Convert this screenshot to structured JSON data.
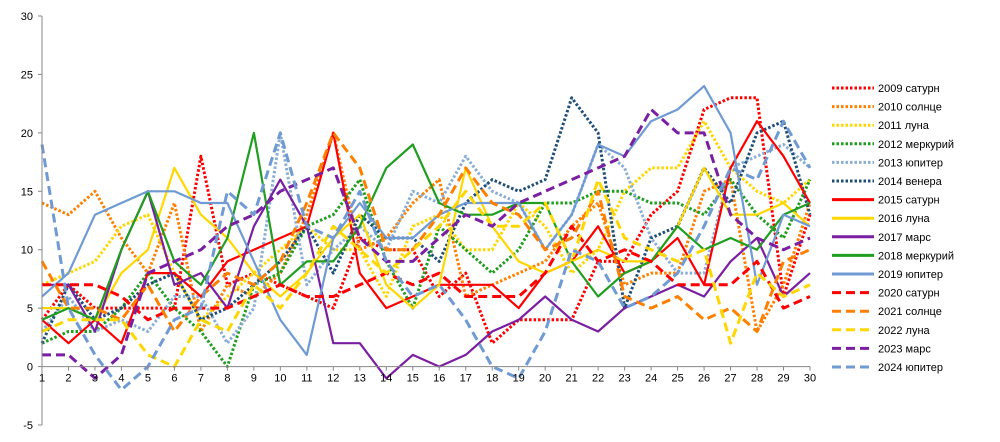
{
  "chart_data": {
    "type": "line",
    "title": "",
    "xlabel": "",
    "ylabel": "",
    "x": [
      1,
      2,
      3,
      4,
      5,
      6,
      7,
      8,
      9,
      10,
      11,
      12,
      13,
      14,
      15,
      16,
      17,
      18,
      19,
      20,
      21,
      22,
      23,
      24,
      25,
      26,
      27,
      28,
      29,
      30
    ],
    "xlim": [
      1,
      30
    ],
    "ylim": [
      -5,
      30
    ],
    "yticks": [
      -5,
      0,
      5,
      10,
      15,
      20,
      25,
      30
    ],
    "grid": false,
    "legend_position": "right",
    "series": [
      {
        "name": "2009 сатурн",
        "color": "#ff0000",
        "dash": "dotted",
        "values": [
          4,
          7,
          5,
          5,
          5,
          5,
          18,
          7,
          8,
          7,
          6,
          5,
          11,
          10,
          10,
          6,
          8,
          2,
          4,
          4,
          4,
          9,
          9,
          13,
          15,
          22,
          23,
          23,
          6,
          13
        ]
      },
      {
        "name": "2010 солнце",
        "color": "#ff8000",
        "dash": "dotted",
        "values": [
          14,
          13,
          15,
          11,
          8,
          14,
          3,
          7,
          6,
          8,
          13,
          20,
          10,
          11,
          14,
          16,
          6,
          7,
          8,
          9,
          12,
          14,
          7,
          8,
          8,
          15,
          16,
          3,
          7,
          14
        ]
      },
      {
        "name": "2011 луна",
        "color": "#ffd700",
        "dash": "dotted",
        "values": [
          7,
          8,
          9,
          12,
          13,
          8,
          4,
          6,
          8,
          10,
          12,
          10,
          10,
          6,
          12,
          13,
          10,
          10,
          14,
          12,
          8,
          10,
          15,
          17,
          17,
          21,
          17,
          15,
          14,
          16
        ]
      },
      {
        "name": "2012 меркурий",
        "color": "#1f9e1f",
        "dash": "dotted",
        "values": [
          2,
          3,
          3,
          5,
          8,
          5,
          3,
          0,
          7,
          8,
          12,
          13,
          16,
          9,
          5,
          12,
          10,
          8,
          10,
          14,
          14,
          15,
          15,
          14,
          14,
          13,
          16,
          13,
          11,
          16
        ]
      },
      {
        "name": "2013 юпитер",
        "color": "#8aaed6",
        "dash": "dotted",
        "values": [
          3,
          6,
          3,
          4,
          3,
          6,
          6,
          2,
          5,
          20,
          7,
          10,
          12,
          10,
          15,
          14,
          18,
          15,
          14,
          10,
          13,
          19,
          17,
          11,
          8,
          8,
          17,
          18,
          19,
          17
        ]
      },
      {
        "name": "2014 венера",
        "color": "#1f4e79",
        "dash": "dotted",
        "values": [
          2,
          7,
          4,
          5,
          7,
          8,
          4,
          5,
          7,
          9,
          12,
          8,
          13,
          11,
          11,
          9,
          14,
          16,
          15,
          16,
          23,
          20,
          5,
          11,
          12,
          17,
          14,
          20,
          21,
          13
        ]
      },
      {
        "name": "2015 сатурн",
        "color": "#ff0000",
        "dash": "solid",
        "values": [
          4,
          2,
          4,
          2,
          8,
          8,
          6,
          9,
          10,
          11,
          12,
          20,
          8,
          5,
          6,
          7,
          7,
          7,
          5,
          8,
          9,
          12,
          8,
          9,
          11,
          7,
          17,
          21,
          18,
          14
        ]
      },
      {
        "name": "2016 луна",
        "color": "#ffd700",
        "dash": "solid",
        "values": [
          5,
          5,
          4,
          8,
          10,
          17,
          13,
          11,
          8,
          6,
          8,
          11,
          13,
          7,
          5,
          7,
          17,
          12,
          9,
          8,
          9,
          10,
          9,
          9,
          12,
          17,
          13,
          13,
          14,
          12
        ]
      },
      {
        "name": "2017 марс",
        "color": "#7a1fa2",
        "dash": "solid",
        "values": [
          7,
          7,
          3,
          10,
          15,
          7,
          8,
          5,
          12,
          16,
          12,
          2,
          2,
          -1,
          1,
          0,
          1,
          3,
          4,
          6,
          4,
          3,
          5,
          6,
          7,
          6,
          9,
          11,
          6,
          8
        ]
      },
      {
        "name": "2018 меркурий",
        "color": "#1f9e1f",
        "dash": "solid",
        "values": [
          4,
          5,
          4,
          10,
          15,
          9,
          7,
          11,
          20,
          7,
          9,
          9,
          12,
          17,
          19,
          14,
          13,
          13,
          14,
          14,
          9,
          6,
          8,
          9,
          12,
          10,
          11,
          10,
          13,
          14
        ]
      },
      {
        "name": "2019 юпитер",
        "color": "#6f9ad3",
        "dash": "solid",
        "values": [
          6,
          8,
          13,
          14,
          15,
          15,
          14,
          14,
          9,
          4,
          1,
          11,
          14,
          11,
          11,
          13,
          14,
          14,
          14,
          10,
          13,
          19,
          18,
          21,
          22,
          24,
          20,
          7,
          13,
          12
        ]
      },
      {
        "name": "2020 сатурн",
        "color": "#ff0000",
        "dash": "dashed",
        "values": [
          7,
          7,
          7,
          6,
          4,
          5,
          5,
          5,
          6,
          7,
          6,
          6,
          7,
          8,
          7,
          8,
          6,
          6,
          6,
          8,
          12,
          9,
          10,
          9,
          7,
          7,
          7,
          9,
          5,
          6
        ]
      },
      {
        "name": "2021 солнце",
        "color": "#ff8000",
        "dash": "dashed",
        "values": [
          9,
          5,
          5,
          4,
          7,
          3,
          6,
          8,
          7,
          9,
          14,
          20,
          17,
          10,
          10,
          13,
          17,
          14,
          13,
          10,
          11,
          15,
          6,
          5,
          6,
          4,
          5,
          3,
          9,
          10
        ]
      },
      {
        "name": "2022 луна",
        "color": "#ffd700",
        "dash": "dashed",
        "values": [
          3,
          4,
          4,
          4,
          1,
          0,
          4,
          3,
          7,
          5,
          8,
          12,
          10,
          8,
          10,
          12,
          15,
          12,
          12,
          14,
          9,
          16,
          11,
          10,
          9,
          10,
          2,
          8,
          6,
          7
        ]
      },
      {
        "name": "2023 марс",
        "color": "#7a1fa2",
        "dash": "dashed",
        "values": [
          1,
          1,
          -1,
          1,
          8,
          9,
          10,
          12,
          13,
          15,
          16,
          17,
          11,
          9,
          9,
          11,
          13,
          12,
          14,
          15,
          16,
          17,
          18,
          22,
          20,
          20,
          13,
          11,
          10,
          11
        ]
      },
      {
        "name": "2024 юпитер",
        "color": "#6f9ad3",
        "dash": "dashed",
        "values": [
          19,
          5,
          1,
          -2,
          0,
          4,
          5,
          15,
          13,
          20,
          12,
          11,
          15,
          9,
          6,
          7,
          4,
          0,
          -1,
          3,
          10,
          9,
          5,
          6,
          8,
          12,
          17,
          16,
          21,
          17
        ]
      }
    ]
  }
}
